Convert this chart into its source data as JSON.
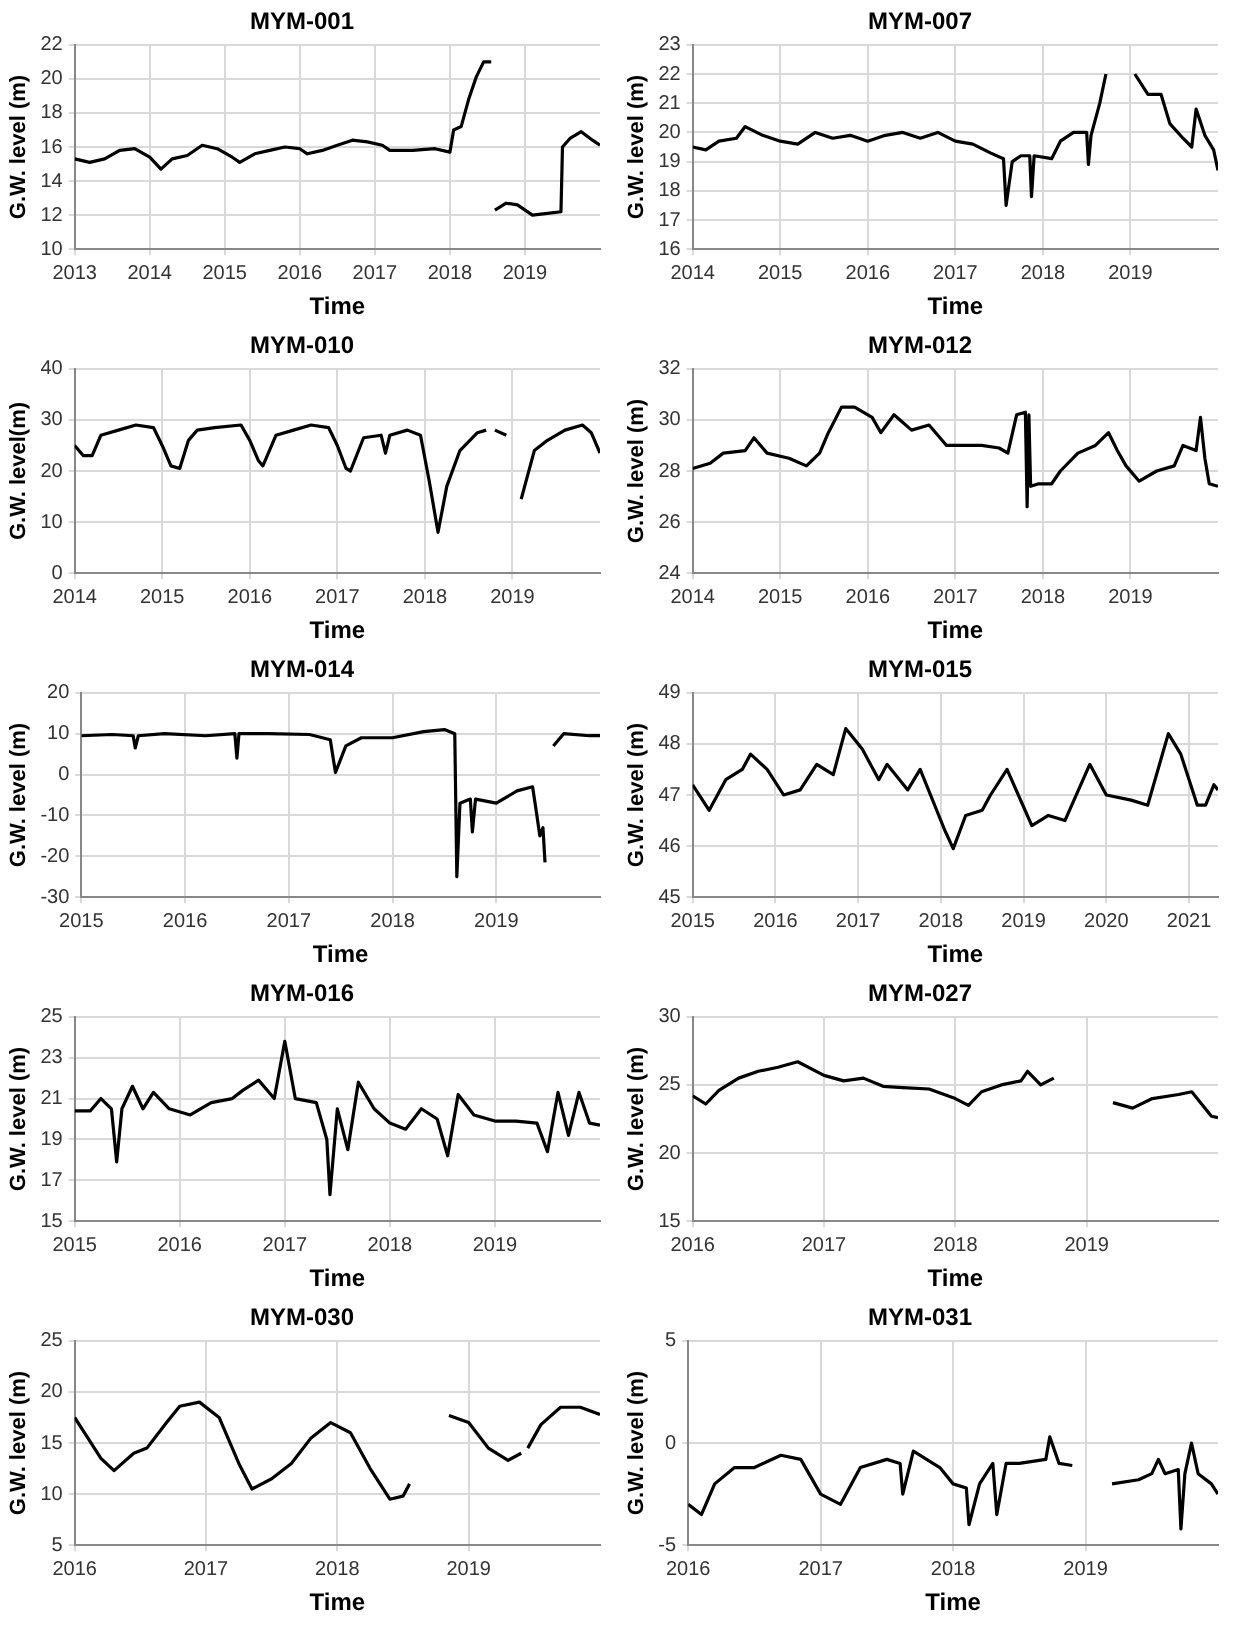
{
  "chart_data": [
    {
      "type": "line",
      "title": "MYM-001",
      "xlabel": "Time",
      "ylabel": "G.W. level (m)",
      "xlim": [
        2013,
        2020
      ],
      "xticks": [
        2013,
        2014,
        2015,
        2016,
        2017,
        2018,
        2019
      ],
      "ylim": [
        10,
        22
      ],
      "yticks": [
        10,
        12,
        14,
        16,
        18,
        20,
        22
      ],
      "grid": true,
      "color": "#000000",
      "x": [
        2013,
        2013.2,
        2013.4,
        2013.6,
        2013.8,
        2014.0,
        2014.15,
        2014.3,
        2014.5,
        2014.7,
        2014.9,
        2015.1,
        2015.2,
        2015.4,
        2015.6,
        2015.8,
        2016.0,
        2016.1,
        2016.3,
        2016.5,
        2016.7,
        2016.9,
        2017.1,
        2017.2,
        2017.5,
        2017.8,
        2018.0,
        2018.05,
        2018.15,
        2018.25,
        2018.35,
        2018.45,
        2018.55,
        2018.57,
        2018.6,
        2018.75,
        2018.9,
        2019.1,
        2019.3,
        2019.48,
        2019.5,
        2019.6,
        2019.75,
        2019.9,
        2020
      ],
      "values": [
        15.3,
        15.1,
        15.3,
        15.8,
        15.9,
        15.4,
        14.7,
        15.3,
        15.5,
        16.1,
        15.9,
        15.4,
        15.1,
        15.6,
        15.8,
        16.0,
        15.9,
        15.6,
        15.8,
        16.1,
        16.4,
        16.3,
        16.1,
        15.8,
        15.8,
        15.9,
        15.7,
        17.0,
        17.2,
        18.8,
        20.1,
        21.0,
        21.0,
        null,
        12.3,
        12.7,
        12.6,
        12.0,
        12.1,
        12.2,
        16.0,
        16.5,
        16.9,
        16.4,
        16.1
      ]
    },
    {
      "type": "line",
      "title": "MYM-007",
      "xlabel": "Time",
      "ylabel": "G.W. level (m)",
      "xlim": [
        2014,
        2020
      ],
      "xticks": [
        2014,
        2015,
        2016,
        2017,
        2018,
        2019
      ],
      "ylim": [
        16,
        23
      ],
      "yticks": [
        16,
        17,
        18,
        19,
        20,
        21,
        22,
        23
      ],
      "grid": true,
      "color": "#000000",
      "x": [
        2014,
        2014.15,
        2014.3,
        2014.5,
        2014.6,
        2014.8,
        2015,
        2015.2,
        2015.4,
        2015.6,
        2015.8,
        2016,
        2016.2,
        2016.4,
        2016.6,
        2016.8,
        2017,
        2017.2,
        2017.4,
        2017.55,
        2017.58,
        2017.65,
        2017.75,
        2017.85,
        2017.87,
        2017.9,
        2018.1,
        2018.2,
        2018.35,
        2018.5,
        2018.52,
        2018.55,
        2018.65,
        2018.72,
        2018.8,
        2019.05,
        2019.2,
        2019.35,
        2019.45,
        2019.6,
        2019.7,
        2019.75,
        2019.85,
        2019.95,
        2020
      ],
      "values": [
        19.5,
        19.4,
        19.7,
        19.8,
        20.2,
        19.9,
        19.7,
        19.6,
        20.0,
        19.8,
        19.9,
        19.7,
        19.9,
        20.0,
        19.8,
        20.0,
        19.7,
        19.6,
        19.3,
        19.1,
        17.5,
        19.0,
        19.2,
        19.2,
        17.8,
        19.2,
        19.1,
        19.7,
        20.0,
        20.0,
        18.9,
        19.9,
        21.0,
        22.0,
        null,
        22.0,
        21.3,
        21.3,
        20.3,
        19.8,
        19.5,
        20.8,
        19.9,
        19.4,
        18.7
      ]
    },
    {
      "type": "line",
      "title": "MYM-010",
      "xlabel": "Time",
      "ylabel": "G.W. level(m)",
      "xlim": [
        2014,
        2020
      ],
      "xticks": [
        2014,
        2015,
        2016,
        2017,
        2018,
        2019
      ],
      "ylim": [
        0,
        40
      ],
      "yticks": [
        0,
        10,
        20,
        30,
        40
      ],
      "grid": true,
      "color": "#000000",
      "x": [
        2014,
        2014.1,
        2014.2,
        2014.3,
        2014.5,
        2014.7,
        2014.9,
        2015.0,
        2015.1,
        2015.2,
        2015.3,
        2015.4,
        2015.6,
        2015.9,
        2016.0,
        2016.1,
        2016.15,
        2016.3,
        2016.5,
        2016.7,
        2016.9,
        2017.0,
        2017.1,
        2017.15,
        2017.3,
        2017.5,
        2017.55,
        2017.6,
        2017.8,
        2017.95,
        2018.05,
        2018.15,
        2018.25,
        2018.4,
        2018.6,
        2018.7,
        2018.76,
        2018.8,
        2018.93,
        2019.0,
        2019.1,
        2019.25,
        2019.4,
        2019.6,
        2019.8,
        2019.9,
        2020
      ],
      "values": [
        25,
        23,
        23,
        27,
        28,
        29,
        28.5,
        25,
        21,
        20.5,
        26,
        28,
        28.5,
        29,
        26,
        22,
        21,
        27,
        28,
        29,
        28.5,
        25,
        20.5,
        20,
        26.5,
        27,
        23.5,
        27,
        28,
        27,
        18,
        8,
        17,
        24,
        27.5,
        28,
        null,
        28,
        27,
        null,
        14.5,
        24,
        26,
        28,
        29,
        27.5,
        23.5
      ]
    },
    {
      "type": "line",
      "title": "MYM-012",
      "xlabel": "Time",
      "ylabel": "G.W. level (m)",
      "xlim": [
        2014,
        2020
      ],
      "xticks": [
        2014,
        2015,
        2016,
        2017,
        2018,
        2019
      ],
      "ylim": [
        24,
        32
      ],
      "yticks": [
        24,
        26,
        28,
        30,
        32
      ],
      "grid": true,
      "color": "#000000",
      "x": [
        2014,
        2014.2,
        2014.35,
        2014.6,
        2014.7,
        2014.85,
        2015.1,
        2015.3,
        2015.45,
        2015.55,
        2015.7,
        2015.85,
        2016.05,
        2016.15,
        2016.3,
        2016.5,
        2016.7,
        2016.9,
        2017.1,
        2017.3,
        2017.5,
        2017.6,
        2017.7,
        2017.8,
        2017.82,
        2017.84,
        2017.86,
        2017.95,
        2018.1,
        2018.2,
        2018.4,
        2018.6,
        2018.75,
        2018.85,
        2018.95,
        2019.1,
        2019.3,
        2019.5,
        2019.6,
        2019.75,
        2019.8,
        2019.85,
        2019.9,
        2020
      ],
      "values": [
        28.1,
        28.3,
        28.7,
        28.8,
        29.3,
        28.7,
        28.5,
        28.2,
        28.7,
        29.5,
        30.5,
        30.5,
        30.1,
        29.5,
        30.2,
        29.6,
        29.8,
        29.0,
        29.0,
        29.0,
        28.9,
        28.7,
        30.2,
        30.3,
        26.6,
        30.2,
        27.4,
        27.5,
        27.5,
        28.0,
        28.7,
        29.0,
        29.5,
        28.8,
        28.2,
        27.6,
        28.0,
        28.2,
        29.0,
        28.8,
        30.1,
        28.5,
        27.5,
        27.4
      ]
    },
    {
      "type": "line",
      "title": "MYM-014",
      "xlabel": "Time",
      "ylabel": "G.W. level (m)",
      "xlim": [
        2015,
        2020
      ],
      "xticks": [
        2015,
        2016,
        2017,
        2018,
        2019
      ],
      "ylim": [
        -30,
        20
      ],
      "yticks": [
        -30,
        -20,
        -10,
        0,
        10,
        20
      ],
      "grid": true,
      "color": "#000000",
      "x": [
        2015,
        2015.3,
        2015.5,
        2015.52,
        2015.55,
        2015.8,
        2016.2,
        2016.48,
        2016.5,
        2016.52,
        2016.8,
        2017.2,
        2017.4,
        2017.45,
        2017.55,
        2017.7,
        2018,
        2018.3,
        2018.5,
        2018.6,
        2018.62,
        2018.65,
        2018.75,
        2018.77,
        2018.8,
        2019,
        2019.2,
        2019.35,
        2019.38,
        2019.42,
        2019.45,
        2019.47,
        2019.52,
        2019.55,
        2019.65,
        2019.9,
        2020
      ],
      "values": [
        9.5,
        9.8,
        9.5,
        6.5,
        9.5,
        10,
        9.5,
        10,
        4,
        10,
        10,
        9.8,
        8.5,
        0.5,
        7,
        9,
        9,
        10.5,
        11,
        10,
        -25,
        -7,
        -6,
        -14,
        -6,
        -7,
        -4,
        -3,
        -8,
        -15,
        -13,
        -21.5,
        null,
        7,
        10,
        9.5,
        9.5
      ]
    },
    {
      "type": "line",
      "title": "MYM-015",
      "xlabel": "Time",
      "ylabel": "G.W. level (m)",
      "xlim": [
        2015,
        2021.35
      ],
      "xticks": [
        2015,
        2016,
        2017,
        2018,
        2019,
        2020,
        2021
      ],
      "ylim": [
        45,
        49
      ],
      "yticks": [
        45,
        46,
        47,
        48,
        49
      ],
      "grid": true,
      "color": "#000000",
      "x": [
        2015,
        2015.2,
        2015.4,
        2015.6,
        2015.7,
        2015.9,
        2016.1,
        2016.3,
        2016.5,
        2016.7,
        2016.85,
        2017.05,
        2017.25,
        2017.35,
        2017.6,
        2017.75,
        2018.05,
        2018.15,
        2018.3,
        2018.5,
        2018.6,
        2018.8,
        2019.1,
        2019.3,
        2019.5,
        2019.8,
        2020.0,
        2020.3,
        2020.5,
        2020.75,
        2020.9,
        2021.1,
        2021.2,
        2021.3,
        2021.35
      ],
      "values": [
        47.2,
        46.7,
        47.3,
        47.5,
        47.8,
        47.5,
        47.0,
        47.1,
        47.6,
        47.4,
        48.3,
        47.9,
        47.3,
        47.6,
        47.1,
        47.5,
        46.3,
        45.95,
        46.6,
        46.7,
        47.0,
        47.5,
        46.4,
        46.6,
        46.5,
        47.6,
        47.0,
        46.9,
        46.8,
        48.2,
        47.8,
        46.8,
        46.8,
        47.2,
        47.1
      ]
    },
    {
      "type": "line",
      "title": "MYM-016",
      "xlabel": "Time",
      "ylabel": "G.W. level (m)",
      "xlim": [
        2015,
        2020
      ],
      "xticks": [
        2015,
        2016,
        2017,
        2018,
        2019
      ],
      "ylim": [
        15,
        25
      ],
      "yticks": [
        15,
        17,
        19,
        21,
        23,
        25
      ],
      "grid": true,
      "color": "#000000",
      "x": [
        2015,
        2015.15,
        2015.25,
        2015.35,
        2015.4,
        2015.45,
        2015.55,
        2015.65,
        2015.75,
        2015.9,
        2016.1,
        2016.3,
        2016.5,
        2016.6,
        2016.75,
        2016.9,
        2017.0,
        2017.1,
        2017.3,
        2017.4,
        2017.43,
        2017.5,
        2017.6,
        2017.7,
        2017.85,
        2018.0,
        2018.15,
        2018.3,
        2018.45,
        2018.55,
        2018.65,
        2018.8,
        2019.0,
        2019.2,
        2019.4,
        2019.5,
        2019.6,
        2019.7,
        2019.8,
        2019.9,
        2020
      ],
      "values": [
        20.4,
        20.4,
        21.0,
        20.5,
        17.9,
        20.5,
        21.6,
        20.5,
        21.3,
        20.5,
        20.2,
        20.8,
        21.0,
        21.4,
        21.9,
        21.0,
        23.8,
        21.0,
        20.8,
        19.0,
        16.3,
        20.5,
        18.5,
        21.8,
        20.5,
        19.8,
        19.5,
        20.5,
        20.0,
        18.2,
        21.2,
        20.2,
        19.9,
        19.9,
        19.8,
        18.4,
        21.3,
        19.2,
        21.3,
        19.8,
        19.7
      ]
    },
    {
      "type": "line",
      "title": "MYM-027",
      "xlabel": "Time",
      "ylabel": "G.W. level (m)",
      "xlim": [
        2016,
        2020
      ],
      "xticks": [
        2016,
        2017,
        2018,
        2019
      ],
      "ylim": [
        15,
        30
      ],
      "yticks": [
        15,
        20,
        25,
        30
      ],
      "grid": true,
      "color": "#000000",
      "x": [
        2016,
        2016.1,
        2016.2,
        2016.35,
        2016.5,
        2016.65,
        2016.8,
        2017.0,
        2017.15,
        2017.3,
        2017.45,
        2017.6,
        2017.8,
        2018.0,
        2018.1,
        2018.2,
        2018.35,
        2018.5,
        2018.55,
        2018.65,
        2018.75,
        2018.9,
        2019.2,
        2019.35,
        2019.5,
        2019.7,
        2019.8,
        2019.95,
        2020
      ],
      "values": [
        24.2,
        23.6,
        24.6,
        25.5,
        26.0,
        26.3,
        26.7,
        25.7,
        25.3,
        25.5,
        24.9,
        24.8,
        24.7,
        24.0,
        23.5,
        24.5,
        25.0,
        25.3,
        26.0,
        25.0,
        25.5,
        null,
        23.7,
        23.3,
        24.0,
        24.3,
        24.5,
        22.7,
        22.6
      ]
    },
    {
      "type": "line",
      "title": "MYM-030",
      "xlabel": "Time",
      "ylabel": "G.W. level (m)",
      "xlim": [
        2016,
        2020
      ],
      "xticks": [
        2016,
        2017,
        2018,
        2019
      ],
      "ylim": [
        5,
        25
      ],
      "yticks": [
        5,
        10,
        15,
        20,
        25
      ],
      "grid": true,
      "color": "#000000",
      "x": [
        2016,
        2016.1,
        2016.2,
        2016.3,
        2016.45,
        2016.55,
        2016.7,
        2016.8,
        2016.95,
        2017.1,
        2017.25,
        2017.35,
        2017.5,
        2017.65,
        2017.8,
        2017.95,
        2018.1,
        2018.25,
        2018.4,
        2018.5,
        2018.55,
        2018.7,
        2018.85,
        2019.0,
        2019.15,
        2019.3,
        2019.4,
        2019.42,
        2019.45,
        2019.55,
        2019.7,
        2019.85,
        2020
      ],
      "values": [
        17.5,
        15.5,
        13.5,
        12.3,
        14.0,
        14.5,
        17.0,
        18.6,
        19.0,
        17.5,
        13.0,
        10.5,
        11.5,
        13.0,
        15.5,
        17.0,
        16.0,
        12.5,
        9.5,
        9.8,
        11.0,
        null,
        17.7,
        17.0,
        14.5,
        13.3,
        14.0,
        null,
        14.5,
        16.8,
        18.5,
        18.5,
        17.8
      ]
    },
    {
      "type": "line",
      "title": "MYM-031",
      "xlabel": "Time",
      "ylabel": "G.W. level (m)",
      "xlim": [
        2016,
        2020
      ],
      "xticks": [
        2016,
        2017,
        2018,
        2019
      ],
      "ylim": [
        -5,
        5
      ],
      "yticks": [
        -5,
        0,
        5
      ],
      "grid": true,
      "color": "#000000",
      "x": [
        2016,
        2016.1,
        2016.2,
        2016.35,
        2016.5,
        2016.7,
        2016.85,
        2017.0,
        2017.15,
        2017.3,
        2017.5,
        2017.6,
        2017.62,
        2017.7,
        2017.9,
        2018.0,
        2018.1,
        2018.12,
        2018.2,
        2018.3,
        2018.33,
        2018.4,
        2018.5,
        2018.7,
        2018.73,
        2018.8,
        2018.9,
        2019.05,
        2019.2,
        2019.4,
        2019.5,
        2019.55,
        2019.6,
        2019.7,
        2019.72,
        2019.75,
        2019.8,
        2019.85,
        2019.95,
        2020
      ],
      "values": [
        -3,
        -3.5,
        -2.0,
        -1.2,
        -1.2,
        -0.6,
        -0.8,
        -2.5,
        -3.0,
        -1.2,
        -0.8,
        -1.0,
        -2.5,
        -0.4,
        -1.2,
        -2.0,
        -2.2,
        -4.0,
        -2.0,
        -1.0,
        -3.5,
        -1.0,
        -1.0,
        -0.8,
        0.3,
        -1.0,
        -1.1,
        null,
        -2.0,
        -1.8,
        -1.5,
        -0.8,
        -1.5,
        -1.3,
        -4.2,
        -1.5,
        0.0,
        -1.5,
        -2.0,
        -2.5
      ]
    }
  ]
}
